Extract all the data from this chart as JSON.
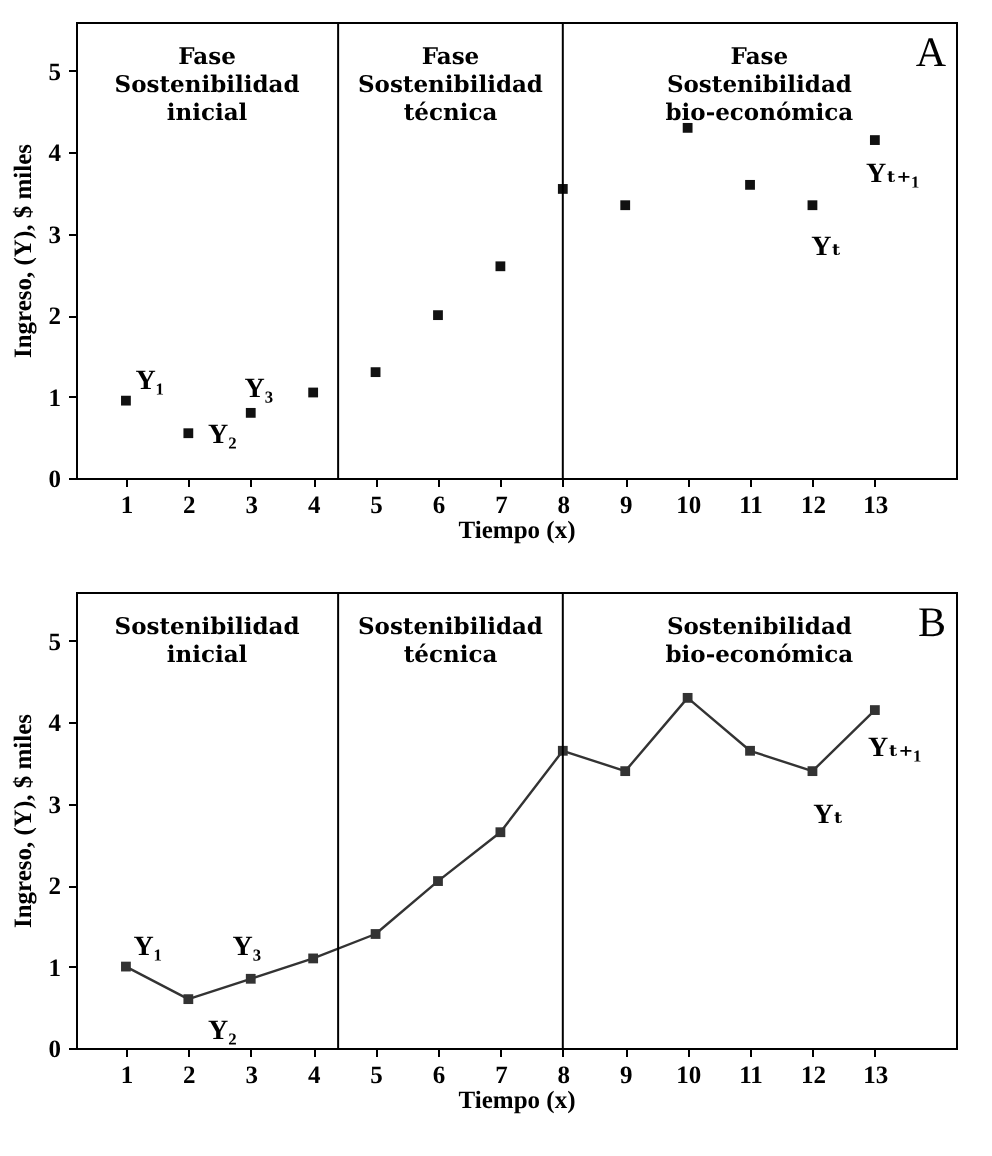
{
  "chart_data": [
    {
      "type": "scatter",
      "xlabel": "Tiempo (x)",
      "ylabel": "Ingreso, (Y), $ miles",
      "x": [
        1,
        2,
        3,
        4,
        5,
        6,
        7,
        8,
        9,
        10,
        11,
        12,
        13
      ],
      "series": [
        {
          "color": "#111111",
          "values": [
            0.95,
            0.55,
            0.8,
            1.05,
            1.3,
            2.0,
            2.6,
            3.55,
            3.35,
            4.3,
            3.6,
            3.35,
            4.15
          ]
        }
      ],
      "marker": "square",
      "xlim": [
        0.2,
        14.3
      ],
      "ylim": [
        0,
        5.6
      ],
      "xticks": [
        1,
        2,
        3,
        4,
        5,
        6,
        7,
        8,
        9,
        10,
        11,
        12,
        13
      ],
      "yticks": [
        0,
        1,
        2,
        3,
        4,
        5
      ],
      "ref_lines": [
        {
          "axis": "x",
          "value": 4.4
        },
        {
          "axis": "x",
          "value": 8
        }
      ],
      "annotations": [
        "Fase\nSostenibilidad\ninicial",
        "Fase\nSostenibilidad\ntécnica",
        "Fase\nSostenibilidad\nbio-económica",
        "A",
        {
          "text": "Y₁",
          "x": 1,
          "y": 0.95
        },
        {
          "text": "Y₂",
          "x": 2,
          "y": 0.55
        },
        {
          "text": "Y₃",
          "x": 3,
          "y": 0.8
        },
        {
          "text": "Yₜ",
          "x": 12,
          "y": 3.35
        },
        {
          "text": "Yₜ₊₁",
          "x": 13,
          "y": 4.15
        }
      ]
    },
    {
      "type": "line",
      "xlabel": "Tiempo (x)",
      "ylabel": "Ingreso, (Y), $ miles",
      "x": [
        1,
        2,
        3,
        4,
        5,
        6,
        7,
        8,
        9,
        10,
        11,
        12,
        13
      ],
      "series": [
        {
          "color": "#333333",
          "values": [
            1.0,
            0.6,
            0.85,
            1.1,
            1.4,
            2.05,
            2.65,
            3.65,
            3.4,
            4.3,
            3.65,
            3.4,
            4.15
          ]
        }
      ],
      "marker": "square",
      "line_style": "solid",
      "xlim": [
        0.2,
        14.3
      ],
      "ylim": [
        0,
        5.6
      ],
      "xticks": [
        1,
        2,
        3,
        4,
        5,
        6,
        7,
        8,
        9,
        10,
        11,
        12,
        13
      ],
      "yticks": [
        0,
        1,
        2,
        3,
        4,
        5
      ],
      "ref_lines": [
        {
          "axis": "x",
          "value": 4.4
        },
        {
          "axis": "x",
          "value": 8
        }
      ],
      "annotations": [
        "Sostenibilidad\ninicial",
        "Sostenibilidad\ntécnica",
        "Sostenibilidad\nbio-económica",
        "B",
        {
          "text": "Y₁",
          "x": 1,
          "y": 1.0
        },
        {
          "text": "Y₂",
          "x": 2,
          "y": 0.6
        },
        {
          "text": "Y₃",
          "x": 3,
          "y": 0.85
        },
        {
          "text": "Yₜ",
          "x": 12,
          "y": 3.4
        },
        {
          "text": "Yₜ₊₁",
          "x": 13,
          "y": 4.15
        }
      ]
    }
  ]
}
